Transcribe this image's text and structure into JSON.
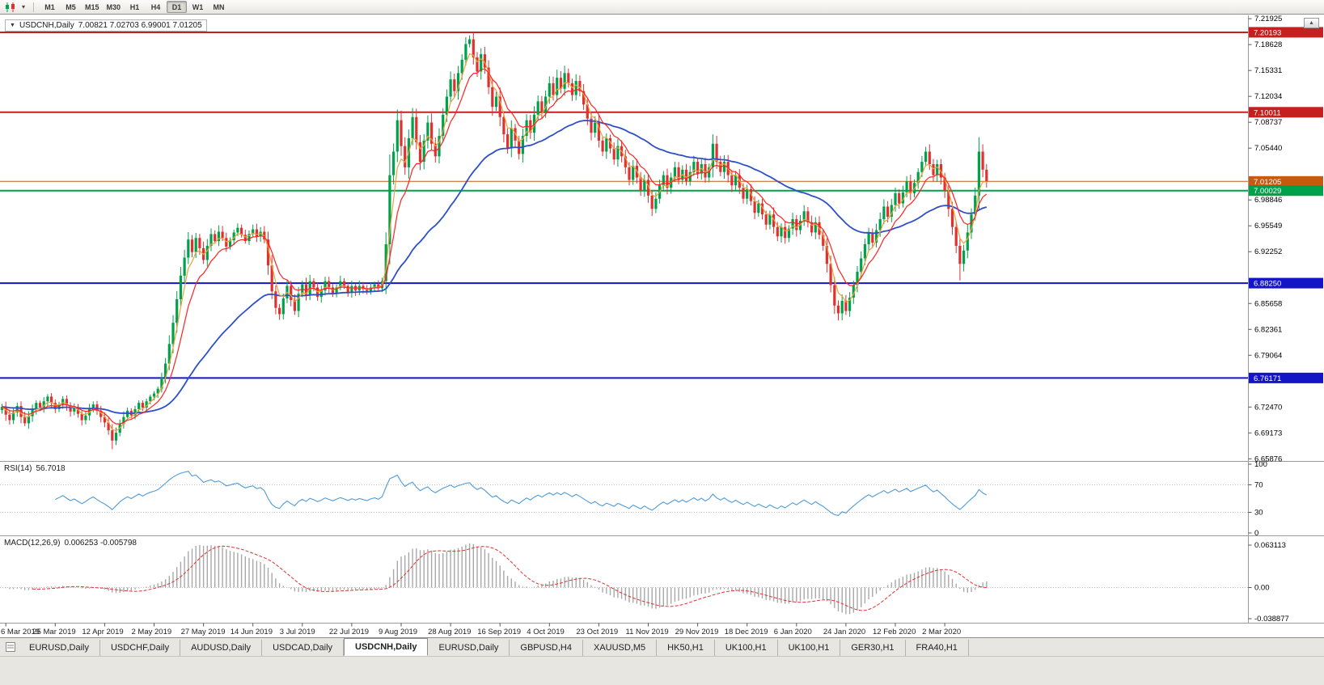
{
  "icons": {
    "symbol_dropdown": "▼",
    "scroll_up": "▲",
    "toolbar_caret": "▾"
  },
  "toolbar": {
    "timeframes": [
      "M1",
      "M5",
      "M15",
      "M30",
      "H1",
      "H4",
      "D1",
      "W1",
      "MN"
    ],
    "active_timeframe": "D1"
  },
  "chart": {
    "symbol_title": "USDCNH,Daily",
    "ohlc_text": "7.00821 7.02703 6.99001 7.01205"
  },
  "indicators": {
    "rsi_label": "RSI(14)",
    "rsi_value": "56.7018",
    "macd_label": "MACD(12,26,9)",
    "macd_values": "0.006253 -0.005798"
  },
  "chart_data": {
    "type": "candlestick",
    "symbol": "USDCNH",
    "timeframe": "Daily",
    "last_ohlc": {
      "open": 7.00821,
      "high": 7.02703,
      "low": 6.99001,
      "close": 7.01205
    },
    "candle_colors": {
      "up": "#00A14B",
      "down": "#E03131"
    },
    "price_axis": {
      "min": 6.656,
      "max": 7.2235,
      "labels": [
        "7.21925",
        "7.18628",
        "7.15331",
        "7.12034",
        "7.08737",
        "7.05440",
        "7.02143",
        "6.98846",
        "6.95549",
        "6.92252",
        "6.88955",
        "6.85658",
        "6.82361",
        "6.79064",
        "6.75767",
        "6.72470",
        "6.69173",
        "6.65876"
      ]
    },
    "levels": [
      {
        "label": "7.20193",
        "value": 7.20193,
        "color": "#C42020",
        "width": 2
      },
      {
        "label": "7.10011",
        "value": 7.10011,
        "color": "#C42020",
        "width": 2
      },
      {
        "label": "7.01205",
        "value": 7.01205,
        "color": "#C55A11",
        "width": 1
      },
      {
        "label": "7.00029",
        "value": 7.00029,
        "color": "#00A14B",
        "width": 2
      },
      {
        "label": "6.88250",
        "value": 6.8825,
        "color": "#1515C8",
        "width": 2
      },
      {
        "label": "6.76171",
        "value": 6.76171,
        "color": "#1515C8",
        "width": 2
      }
    ],
    "date_labels": [
      "6 Mar 2019",
      "25 Mar 2019",
      "12 Apr 2019",
      "2 May 2019",
      "27 May 2019",
      "14 Jun 2019",
      "3 Jul 2019",
      "22 Jul 2019",
      "9 Aug 2019",
      "28 Aug 2019",
      "16 Sep 2019",
      "4 Oct 2019",
      "23 Oct 2019",
      "11 Nov 2019",
      "29 Nov 2019",
      "18 Dec 2019",
      "6 Jan 2020",
      "24 Jan 2020",
      "12 Feb 2020",
      "2 Mar 2020"
    ],
    "moving_averages": [
      {
        "name": "ma-slow-blue",
        "period": 45,
        "color": "#2E4FC8",
        "stroke_width": 1.8
      },
      {
        "name": "ma-fast-orange",
        "period": 4,
        "color": "#E8A33D",
        "stroke_width": 1.2
      },
      {
        "name": "ma-mid-red",
        "period": 9,
        "color": "#FF2222",
        "stroke_width": 1.2
      }
    ],
    "rsi": {
      "period": 14,
      "color": "#4F9BD9",
      "axis_labels": [
        "100",
        "70",
        "30",
        "0"
      ],
      "dashed_levels": [
        70,
        30
      ],
      "last_value": "56.7018"
    },
    "macd": {
      "fast": 12,
      "slow": 26,
      "signal": 9,
      "histogram_color": "#A8A8A8",
      "signal_color": "#E03131",
      "axis_labels": [
        "0.063113",
        "0.00",
        "-0.038877"
      ],
      "values_text": "0.006253 -0.005798"
    },
    "closes": [
      6.725,
      6.715,
      6.708,
      6.718,
      6.726,
      6.712,
      6.704,
      6.713,
      6.722,
      6.73,
      6.724,
      6.732,
      6.738,
      6.73,
      6.722,
      6.728,
      6.735,
      6.727,
      6.719,
      6.724,
      6.716,
      6.708,
      6.714,
      6.722,
      6.728,
      6.72,
      6.712,
      6.705,
      6.695,
      6.682,
      6.692,
      6.703,
      6.712,
      6.72,
      6.714,
      6.722,
      6.73,
      6.724,
      6.732,
      6.738,
      6.742,
      6.748,
      6.762,
      6.78,
      6.805,
      6.832,
      6.862,
      6.892,
      6.915,
      6.938,
      6.922,
      6.94,
      6.927,
      6.912,
      6.93,
      6.945,
      6.936,
      6.948,
      6.94,
      6.929,
      6.937,
      6.947,
      6.953,
      6.944,
      6.936,
      6.945,
      6.951,
      6.942,
      6.948,
      6.938,
      6.905,
      6.872,
      6.851,
      6.843,
      6.863,
      6.879,
      6.861,
      6.847,
      6.869,
      6.881,
      6.867,
      6.885,
      6.877,
      6.865,
      6.873,
      6.885,
      6.877,
      6.869,
      6.877,
      6.885,
      6.879,
      6.871,
      6.879,
      6.873,
      6.879,
      6.875,
      6.871,
      6.877,
      6.881,
      6.876,
      6.885,
      6.932,
      7.02,
      7.05,
      7.09,
      7.057,
      7.03,
      7.067,
      7.094,
      7.062,
      7.037,
      7.064,
      7.087,
      7.06,
      7.044,
      7.07,
      7.097,
      7.12,
      7.142,
      7.127,
      7.15,
      7.167,
      7.187,
      7.193,
      7.17,
      7.152,
      7.174,
      7.157,
      7.132,
      7.107,
      7.12,
      7.094,
      7.072,
      7.054,
      7.08,
      7.064,
      7.047,
      7.07,
      7.09,
      7.074,
      7.097,
      7.114,
      7.1,
      7.12,
      7.137,
      7.122,
      7.144,
      7.13,
      7.15,
      7.137,
      7.122,
      7.14,
      7.127,
      7.11,
      7.092,
      7.074,
      7.087,
      7.064,
      7.05,
      7.067,
      7.054,
      7.04,
      7.057,
      7.044,
      7.03,
      7.014,
      7.032,
      7.017,
      7.0,
      7.014,
      6.994,
      6.977,
      6.99,
      7.007,
      7.02,
      7.004,
      7.017,
      7.03,
      7.014,
      7.027,
      7.012,
      7.024,
      7.037,
      7.022,
      7.034,
      7.017,
      7.03,
      7.06,
      7.037,
      7.024,
      7.037,
      7.02,
      7.007,
      7.02,
      7.004,
      6.99,
      7.002,
      6.987,
      6.972,
      6.984,
      6.97,
      6.957,
      6.97,
      6.954,
      6.942,
      6.954,
      6.94,
      6.952,
      6.964,
      6.95,
      6.962,
      6.974,
      6.96,
      6.947,
      6.96,
      6.944,
      6.93,
      6.907,
      6.88,
      6.854,
      6.844,
      6.86,
      6.847,
      6.864,
      6.88,
      6.897,
      6.914,
      6.932,
      6.947,
      6.934,
      6.95,
      6.964,
      6.98,
      6.967,
      6.982,
      6.997,
      6.984,
      6.998,
      7.012,
      6.997,
      7.01,
      7.024,
      7.037,
      7.05,
      7.034,
      7.02,
      7.034,
      7.017,
      7.0,
      6.977,
      6.954,
      6.93,
      6.907,
      6.924,
      6.947,
      6.97,
      6.994,
      7.05,
      7.027,
      7.01205
    ],
    "wick_overrides": {
      "high": {
        "123": 7.198,
        "187": 7.072,
        "257": 7.062
      },
      "low": {
        "29": 6.671,
        "220": 6.835,
        "252": 6.886
      }
    }
  },
  "tabs": {
    "items": [
      "EURUSD,Daily",
      "USDCHF,Daily",
      "AUDUSD,Daily",
      "USDCAD,Daily",
      "USDCNH,Daily",
      "EURUSD,Daily",
      "GBPUSD,H4",
      "XAUUSD,M5",
      "HK50,H1",
      "UK100,H1",
      "UK100,H1",
      "GER30,H1",
      "FRA40,H1"
    ],
    "active_index": 4
  }
}
